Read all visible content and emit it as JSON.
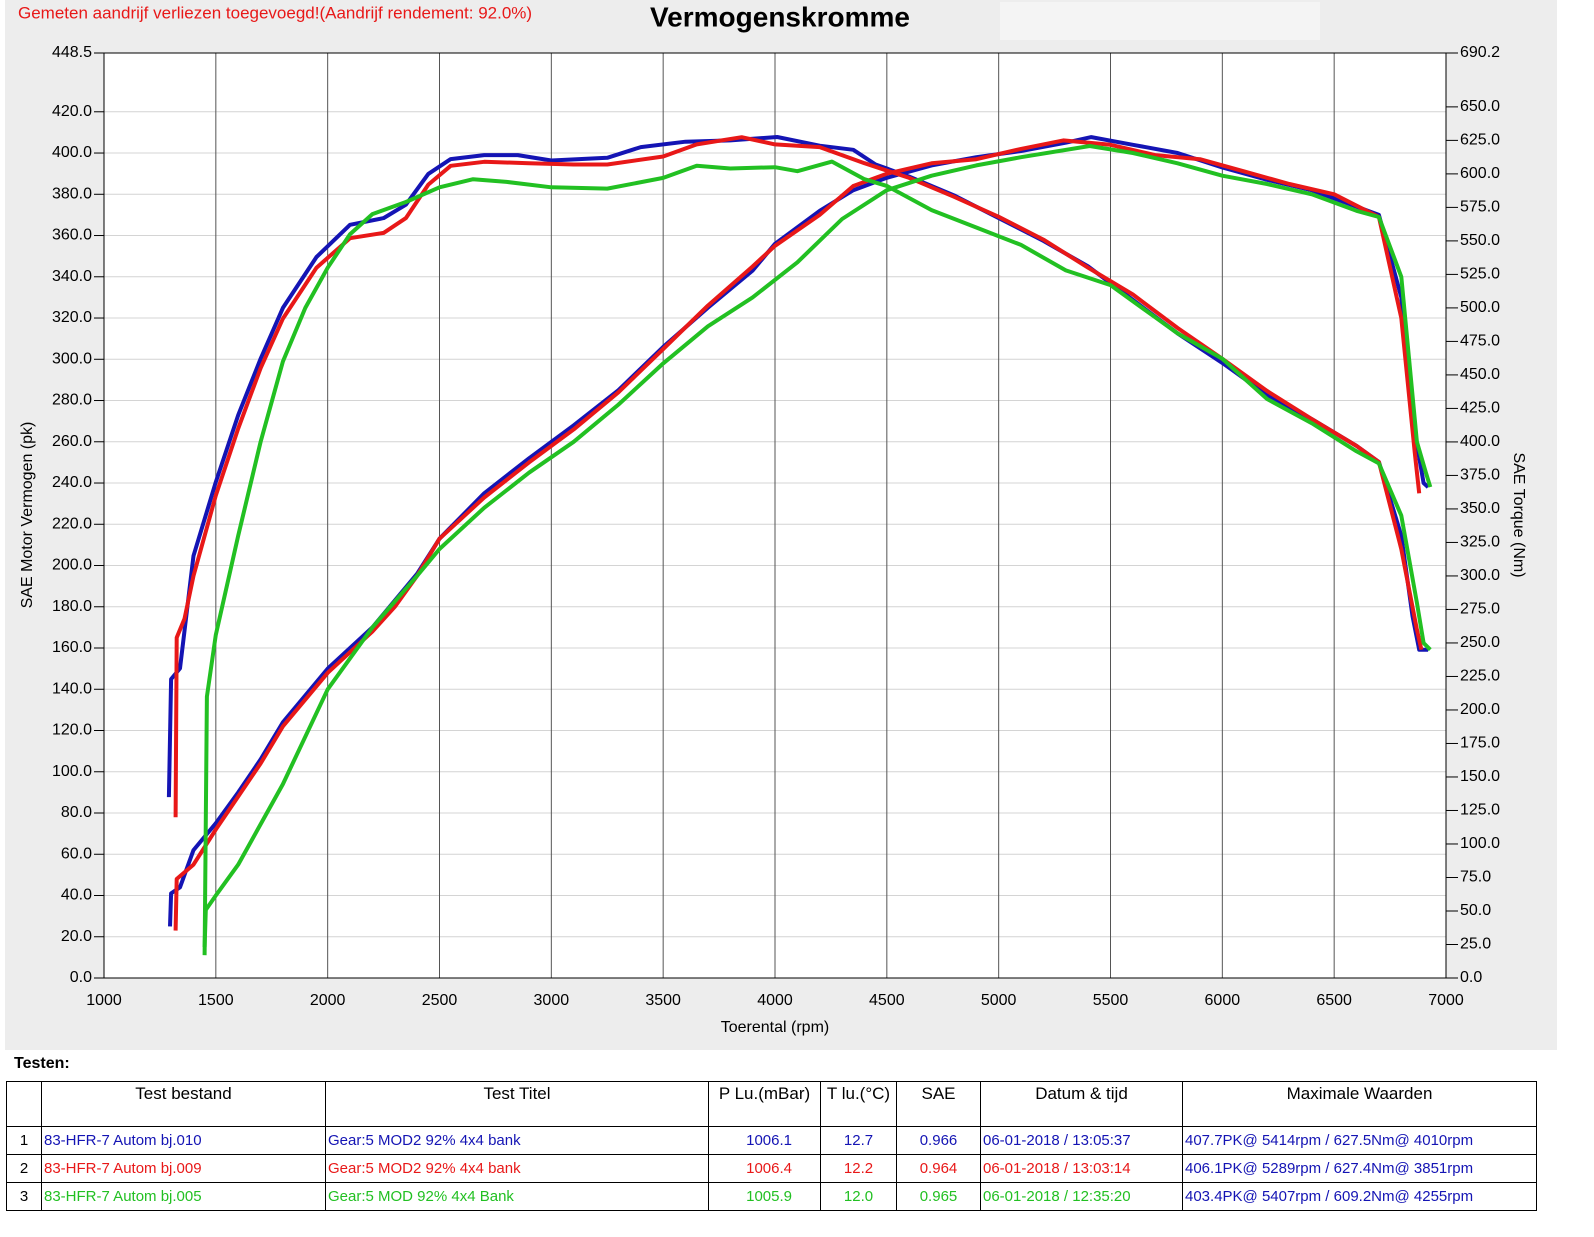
{
  "chart_data": {
    "type": "line",
    "title": "Vermogenskromme",
    "subtitle": "Gemeten aandrijf verliezen toegevoegd!(Aandrijf rendement: 92.0%)",
    "xlabel": "Toerental (rpm)",
    "ylabel": "SAE Motor Vermogen (pk)",
    "y2label": "SAE Torque (Nm)",
    "xlim": [
      1000,
      7000
    ],
    "xticks": [
      1000,
      1500,
      2000,
      2500,
      3000,
      3500,
      4000,
      4500,
      5000,
      5500,
      6000,
      6500,
      7000
    ],
    "ylim": [
      0,
      448.5
    ],
    "yticks": [
      {
        "value": 0,
        "label": "0.0"
      },
      {
        "value": 20,
        "label": "20.0"
      },
      {
        "value": 40,
        "label": "40.0"
      },
      {
        "value": 60,
        "label": "60.0"
      },
      {
        "value": 80,
        "label": "80.0"
      },
      {
        "value": 100,
        "label": "100.0"
      },
      {
        "value": 120,
        "label": "120.0"
      },
      {
        "value": 140,
        "label": "140.0"
      },
      {
        "value": 160,
        "label": "160.0"
      },
      {
        "value": 180,
        "label": "180.0"
      },
      {
        "value": 200,
        "label": "200.0"
      },
      {
        "value": 220,
        "label": "220.0"
      },
      {
        "value": 240,
        "label": "240.0"
      },
      {
        "value": 260,
        "label": "260.0"
      },
      {
        "value": 280,
        "label": "280.0"
      },
      {
        "value": 300,
        "label": "300.0"
      },
      {
        "value": 320,
        "label": "320.0"
      },
      {
        "value": 340,
        "label": "340.0"
      },
      {
        "value": 360,
        "label": "360.0"
      },
      {
        "value": 380,
        "label": "380.0"
      },
      {
        "value": 400,
        "label": "400.0"
      },
      {
        "value": 420,
        "label": "420.0"
      },
      448.5
    ],
    "y2lim": [
      0,
      690.2
    ],
    "y2ticks": [
      {
        "value": 0,
        "label": "0.0"
      },
      {
        "value": 25,
        "label": "25.0"
      },
      {
        "value": 50,
        "label": "50.0"
      },
      {
        "value": 75,
        "label": "75.0"
      },
      {
        "value": 100,
        "label": "100.0"
      },
      {
        "value": 125,
        "label": "125.0"
      },
      {
        "value": 150,
        "label": "150.0"
      },
      {
        "value": 175,
        "label": "175.0"
      },
      {
        "value": 200,
        "label": "200.0"
      },
      {
        "value": 225,
        "label": "225.0"
      },
      {
        "value": 250,
        "label": "250.0"
      },
      {
        "value": 275,
        "label": "275.0"
      },
      {
        "value": 300,
        "label": "300.0"
      },
      {
        "value": 325,
        "label": "325.0"
      },
      {
        "value": 350,
        "label": "350.0"
      },
      {
        "value": 375,
        "label": "375.0"
      },
      {
        "value": 400,
        "label": "400.0"
      },
      {
        "value": 425,
        "label": "425.0"
      },
      {
        "value": 450,
        "label": "450.0"
      },
      {
        "value": 475,
        "label": "475.0"
      },
      {
        "value": 500,
        "label": "500.0"
      },
      {
        "value": 525,
        "label": "525.0"
      },
      {
        "value": 550,
        "label": "550.0"
      },
      {
        "value": 575,
        "label": "575.0"
      },
      {
        "value": 600,
        "label": "600.0"
      },
      {
        "value": 625,
        "label": "625.0"
      },
      {
        "value": 650,
        "label": "650.0"
      },
      690.2
    ],
    "grid": true,
    "series": [
      {
        "color": "#1414b4",
        "axis": "y2",
        "x": [
          1290,
          1300,
          1340,
          1400,
          1500,
          1600,
          1700,
          1800,
          1950,
          2100,
          2250,
          2350,
          2450,
          2550,
          2700,
          2850,
          3000,
          3250,
          3400,
          3600,
          3800,
          4010,
          4200,
          4350,
          4450,
          4600,
          4800,
          5000,
          5200,
          5400,
          5600,
          5800,
          6000,
          6200,
          6400,
          6600,
          6700,
          6800,
          6850,
          6880,
          6920
        ],
        "values": [
          135,
          223,
          231,
          315,
          370,
          420,
          462,
          500,
          538,
          562,
          567,
          577,
          600,
          611,
          614,
          614,
          610,
          612,
          620,
          624,
          625,
          627.5,
          621,
          618,
          607,
          598,
          584,
          567,
          550,
          531,
          506,
          481,
          459,
          435,
          417,
          397,
          385,
          330,
          270,
          245,
          245
        ]
      },
      {
        "color": "#1414b4",
        "x": [
          1295,
          1300,
          1340,
          1400,
          1500,
          1600,
          1700,
          1800,
          2000,
          2200,
          2400,
          2500,
          2700,
          2900,
          3100,
          3300,
          3500,
          3700,
          3900,
          4000,
          4200,
          4350,
          4500,
          4700,
          4900,
          5100,
          5300,
          5414,
          5600,
          5800,
          6000,
          6200,
          6400,
          6550,
          6700,
          6800,
          6860,
          6900,
          6920
        ],
        "values": [
          25,
          41,
          44,
          62,
          75,
          90,
          106,
          124,
          150,
          170,
          196,
          213,
          235,
          252,
          268,
          285,
          306,
          325,
          343,
          356,
          372,
          382,
          388,
          394,
          398,
          401,
          405,
          407.7,
          404,
          400,
          393,
          387,
          382,
          376,
          370,
          330,
          265,
          240,
          238
        ]
      },
      {
        "color": "#e81818",
        "axis": "y2",
        "x": [
          1320,
          1325,
          1360,
          1400,
          1500,
          1600,
          1700,
          1800,
          1950,
          2100,
          2250,
          2350,
          2450,
          2550,
          2700,
          2900,
          3100,
          3250,
          3500,
          3650,
          3851,
          4000,
          4200,
          4400,
          4600,
          4800,
          5000,
          5200,
          5400,
          5600,
          5800,
          6000,
          6200,
          6400,
          6600,
          6700,
          6800,
          6870,
          6890
        ],
        "values": [
          120,
          254,
          268,
          300,
          360,
          410,
          455,
          492,
          530,
          552,
          556,
          567,
          592,
          606,
          609,
          608,
          607,
          607,
          613,
          622,
          627.4,
          622,
          620,
          608,
          597,
          583,
          568,
          551,
          530,
          510,
          485,
          462,
          438,
          417,
          397,
          385,
          320,
          260,
          245
        ]
      },
      {
        "color": "#e81818",
        "x": [
          1320,
          1325,
          1400,
          1500,
          1600,
          1700,
          1800,
          2000,
          2200,
          2300,
          2400,
          2500,
          2700,
          2900,
          3100,
          3300,
          3500,
          3700,
          3900,
          4000,
          4200,
          4350,
          4500,
          4700,
          4900,
          5100,
          5289,
          5500,
          5700,
          5900,
          6100,
          6300,
          6500,
          6700,
          6800,
          6860,
          6880
        ],
        "values": [
          23,
          48,
          55,
          72,
          88,
          104,
          122,
          148,
          168,
          180,
          195,
          213,
          233,
          250,
          266,
          284,
          305,
          326,
          345,
          355,
          370,
          384,
          390,
          395,
          397,
          402,
          406.1,
          404,
          399,
          397,
          391,
          385,
          380,
          369,
          320,
          255,
          235
        ]
      },
      {
        "color": "#22c022",
        "axis": "y2",
        "x": [
          1450,
          1460,
          1500,
          1600,
          1700,
          1800,
          1900,
          2000,
          2100,
          2200,
          2350,
          2500,
          2650,
          2800,
          3000,
          3250,
          3500,
          3650,
          3800,
          4000,
          4100,
          4255,
          4400,
          4500,
          4700,
          4900,
          5100,
          5300,
          5500,
          5700,
          5800,
          6000,
          6200,
          6400,
          6600,
          6700,
          6800,
          6870,
          6900,
          6930
        ],
        "values": [
          17,
          210,
          256,
          330,
          400,
          460,
          500,
          530,
          555,
          570,
          579,
          590,
          596,
          594,
          590,
          589,
          597,
          606,
          604,
          605,
          602,
          609.2,
          596,
          591,
          573,
          560,
          547,
          528,
          517,
          493,
          481,
          462,
          432,
          414,
          393,
          384,
          345,
          280,
          250,
          245
        ]
      },
      {
        "color": "#22c022",
        "x": [
          1450,
          1455,
          1500,
          1600,
          1800,
          2000,
          2200,
          2400,
          2500,
          2700,
          2900,
          3100,
          3300,
          3500,
          3700,
          3900,
          4100,
          4300,
          4500,
          4700,
          4900,
          5100,
          5407,
          5600,
          5800,
          6000,
          6200,
          6400,
          6600,
          6700,
          6800,
          6870,
          6910,
          6930
        ],
        "values": [
          15,
          33,
          40,
          55,
          94,
          140,
          170,
          195,
          208,
          228,
          245,
          260,
          278,
          298,
          316,
          330,
          347,
          368,
          382,
          389,
          394,
          398,
          403.4,
          400,
          395,
          389,
          385,
          380,
          372,
          369,
          340,
          260,
          245,
          238
        ]
      }
    ]
  },
  "table": {
    "title": "Testen:",
    "header": [
      "Test bestand",
      "Test Titel",
      "P Lu.(mBar)",
      "T lu.(°C)",
      "SAE",
      "Datum & tijd",
      "Maximale Waarden"
    ],
    "row_colors": [
      "#1414b4",
      "#e81818",
      "#22c022"
    ],
    "max_color": "#1414b4",
    "rows": [
      [
        "1",
        "83-HFR-7 Autom bj.010",
        "Gear:5 MOD2 92% 4x4 bank",
        "1006.1",
        "12.7",
        "0.966",
        "06-01-2018 / 13:05:37",
        "407.7PK@ 5414rpm / 627.5Nm@ 4010rpm"
      ],
      [
        "2",
        "83-HFR-7 Autom bj.009",
        "Gear:5 MOD2 92% 4x4 bank",
        "1006.4",
        "12.2",
        "0.964",
        "06-01-2018 / 13:03:14",
        "406.1PK@ 5289rpm / 627.4Nm@ 3851rpm"
      ],
      [
        "3",
        "83-HFR-7 Autom bj.005",
        "Gear:5  MOD 92% 4x4 Bank",
        "1005.9",
        "12.0",
        "0.965",
        "06-01-2018 / 12:35:20",
        "403.4PK@ 5407rpm / 609.2Nm@ 4255rpm"
      ]
    ]
  }
}
